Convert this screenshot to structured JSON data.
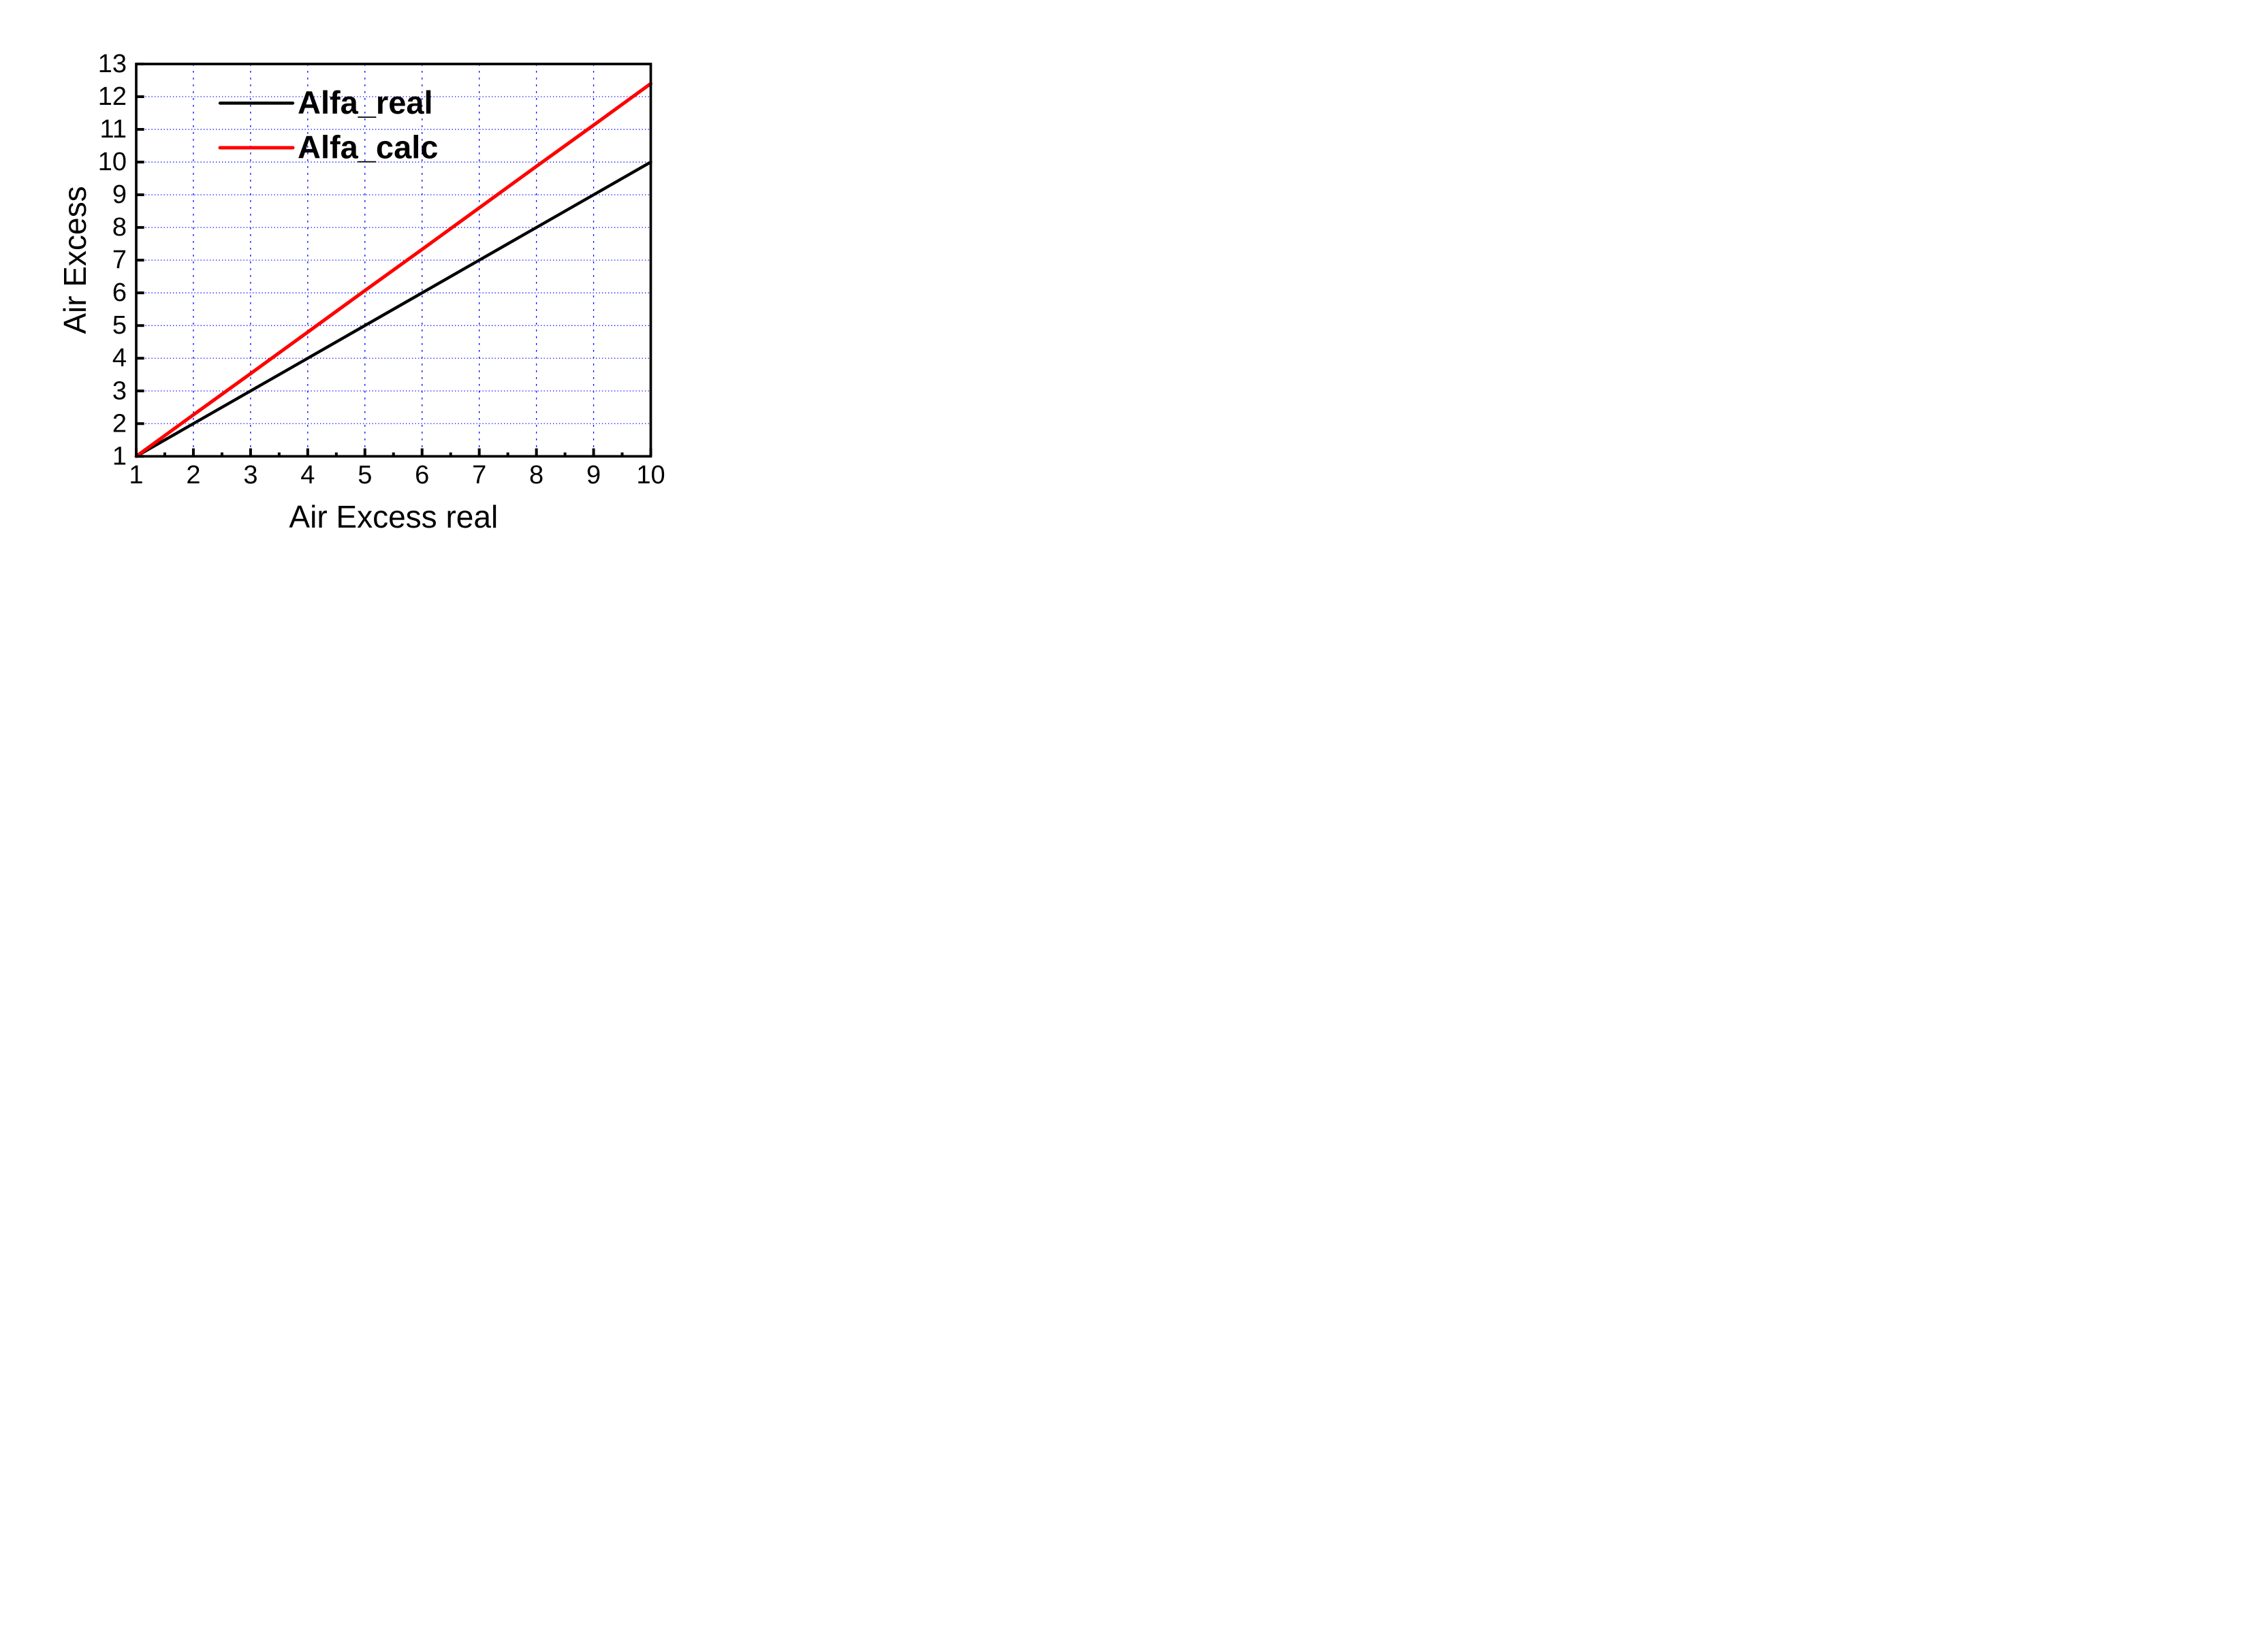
{
  "chart_data": {
    "type": "line",
    "xlabel": "Air Excess real",
    "ylabel": "Air Excess",
    "xlim": [
      1,
      10
    ],
    "ylim": [
      1,
      13
    ],
    "x_major_ticks": [
      1,
      2,
      3,
      4,
      5,
      6,
      7,
      8,
      9,
      10
    ],
    "x_tick_labels": [
      "1",
      "2",
      "3",
      "4",
      "5",
      "6",
      "7",
      "8",
      "9",
      "10"
    ],
    "x_minor_ticks": [
      1.5,
      2.5,
      3.5,
      4.5,
      5.5,
      6.5,
      7.5,
      8.5,
      9.5
    ],
    "y_major_ticks": [
      1,
      2,
      3,
      4,
      5,
      6,
      7,
      8,
      9,
      10,
      11,
      12,
      13
    ],
    "y_tick_labels": [
      "1",
      "2",
      "3",
      "4",
      "5",
      "6",
      "7",
      "8",
      "9",
      "10",
      "11",
      "12",
      "13"
    ],
    "grid": {
      "show": true,
      "color": "#0000FF",
      "style": "dotted",
      "vertical_at_x": [
        2,
        3,
        4,
        5,
        6,
        7,
        8,
        9
      ],
      "horizontal_at_y": [
        2,
        3,
        4,
        5,
        6,
        7,
        8,
        9,
        10,
        11,
        12
      ]
    },
    "x": [
      1,
      2,
      3,
      4,
      5,
      6,
      7,
      8,
      9,
      10
    ],
    "series": [
      {
        "name": "Alfa_real",
        "color": "#000000",
        "values": [
          1.0,
          2.0,
          3.0,
          4.0,
          5.0,
          6.0,
          7.0,
          8.0,
          9.0,
          10.0
        ]
      },
      {
        "name": "Alfa_calc",
        "color": "#FF0000",
        "values": [
          1.0,
          2.27,
          3.53,
          4.8,
          6.07,
          7.33,
          8.6,
          9.87,
          11.13,
          12.4
        ]
      }
    ],
    "legend": {
      "position": "top-left-inside",
      "entries": [
        "Alfa_real",
        "Alfa_calc"
      ]
    }
  }
}
